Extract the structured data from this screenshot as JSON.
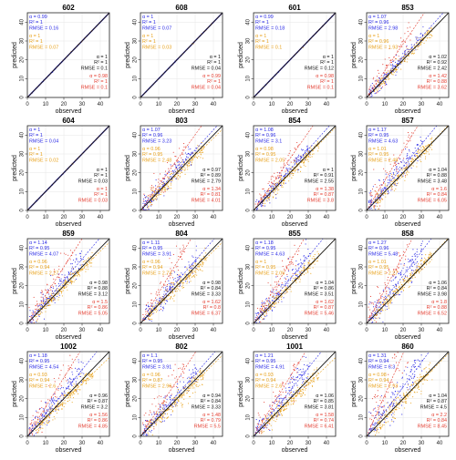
{
  "colors": {
    "blue": "#2a2ae6",
    "orange": "#e8a21c",
    "red": "#e33b2e",
    "black": "#111111",
    "frame": "#222222"
  },
  "chart_data": {
    "type": "scatter",
    "layout": "4x4 facets",
    "xlabel": "observed",
    "ylabel": "predicted",
    "xlim": [
      0,
      45
    ],
    "ylim": [
      0,
      45
    ],
    "ticks": [
      "0",
      "10",
      "20",
      "30",
      "40"
    ],
    "tick_values": [
      0,
      10,
      20,
      30,
      40
    ],
    "legend_position": "per-panel annotations",
    "labels": {
      "alpha": "α = ",
      "r2": "R² = ",
      "rmse": "RMSE = "
    },
    "series_colors": [
      "blue",
      "orange",
      "black",
      "red"
    ],
    "panels": [
      {
        "title": "602",
        "regime": "identity",
        "stats": [
          {
            "alpha": "0.99",
            "r2": "1",
            "rmse": "0.16"
          },
          {
            "alpha": "1",
            "r2": "1",
            "rmse": "0.07"
          },
          {
            "alpha": "1",
            "r2": "1",
            "rmse": "0.1"
          },
          {
            "alpha": "0.98",
            "r2": "1",
            "rmse": "0.1"
          }
        ]
      },
      {
        "title": "608",
        "regime": "identity",
        "stats": [
          {
            "alpha": "1",
            "r2": "1",
            "rmse": "0.07"
          },
          {
            "alpha": "1",
            "r2": "1",
            "rmse": "0.03"
          },
          {
            "alpha": "1",
            "r2": "1",
            "rmse": "0.04"
          },
          {
            "alpha": "0.99",
            "r2": "1",
            "rmse": "0.04"
          }
        ]
      },
      {
        "title": "601",
        "regime": "identity",
        "stats": [
          {
            "alpha": "0.99",
            "r2": "1",
            "rmse": "0.18"
          },
          {
            "alpha": "1",
            "r2": "1",
            "rmse": "0.1"
          },
          {
            "alpha": "1",
            "r2": "1",
            "rmse": "0.12"
          },
          {
            "alpha": "0.98",
            "r2": "1",
            "rmse": "0.1"
          }
        ]
      },
      {
        "title": "853",
        "regime": "scatter",
        "stats": [
          {
            "alpha": "1.07",
            "r2": "0.96",
            "rmse": "2.98"
          },
          {
            "alpha": "1",
            "r2": "0.96",
            "rmse": "1.93"
          },
          {
            "alpha": "1.02",
            "r2": "0.92",
            "rmse": "2.42"
          },
          {
            "alpha": "1.42",
            "r2": "0.88",
            "rmse": "3.62"
          }
        ]
      },
      {
        "title": "604",
        "regime": "identity",
        "stats": [
          {
            "alpha": "1",
            "r2": "1",
            "rmse": "0.04"
          },
          {
            "alpha": "1",
            "r2": "1",
            "rmse": "0.02"
          },
          {
            "alpha": "1",
            "r2": "1",
            "rmse": "0.03"
          },
          {
            "alpha": "1",
            "r2": "1",
            "rmse": "0.03"
          }
        ]
      },
      {
        "title": "803",
        "regime": "scatter",
        "stats": [
          {
            "alpha": "1.07",
            "r2": "0.96",
            "rmse": "3.23"
          },
          {
            "alpha": "0.96",
            "r2": "0.95",
            "rmse": "2.48"
          },
          {
            "alpha": "0.97",
            "r2": "0.89",
            "rmse": "2.79"
          },
          {
            "alpha": "1.34",
            "r2": "0.81",
            "rmse": "4.01"
          }
        ]
      },
      {
        "title": "854",
        "regime": "scatter",
        "stats": [
          {
            "alpha": "1.08",
            "r2": "0.96",
            "rmse": "3.1"
          },
          {
            "alpha": "0.98",
            "r2": "0.95",
            "rmse": "2.05"
          },
          {
            "alpha": "1",
            "r2": "0.91",
            "rmse": "2.55"
          },
          {
            "alpha": "1.38",
            "r2": "0.87",
            "rmse": "3.8"
          }
        ]
      },
      {
        "title": "857",
        "regime": "scatter",
        "stats": [
          {
            "alpha": "1.17",
            "r2": "0.95",
            "rmse": "4.63"
          },
          {
            "alpha": "1.01",
            "r2": "0.95",
            "rmse": "2.48"
          },
          {
            "alpha": "1.04",
            "r2": "0.88",
            "rmse": "3.48"
          },
          {
            "alpha": "1.6",
            "r2": "0.84",
            "rmse": "6.05"
          }
        ]
      },
      {
        "title": "859",
        "regime": "scatter",
        "stats": [
          {
            "alpha": "1.14",
            "r2": "0.95",
            "rmse": "4.07"
          },
          {
            "alpha": "0.96",
            "r2": "0.94",
            "rmse": "2.27"
          },
          {
            "alpha": "0.98",
            "r2": "0.88",
            "rmse": "3.12"
          },
          {
            "alpha": "1.5",
            "r2": "0.86",
            "rmse": "5.05"
          }
        ]
      },
      {
        "title": "804",
        "regime": "scatter",
        "stats": [
          {
            "alpha": "1.11",
            "r2": "0.95",
            "rmse": "3.91"
          },
          {
            "alpha": "0.96",
            "r2": "0.94",
            "rmse": "2.73"
          },
          {
            "alpha": "0.98",
            "r2": "0.84",
            "rmse": "3.33"
          },
          {
            "alpha": "1.62",
            "r2": "0.8",
            "rmse": "6.37"
          }
        ]
      },
      {
        "title": "855",
        "regime": "scatter",
        "stats": [
          {
            "alpha": "1.18",
            "r2": "0.95",
            "rmse": "4.63"
          },
          {
            "alpha": "1",
            "r2": "0.95",
            "rmse": "2.05"
          },
          {
            "alpha": "1.04",
            "r2": "0.86",
            "rmse": "3.51"
          },
          {
            "alpha": "1.62",
            "r2": "0.87",
            "rmse": "5.46"
          }
        ]
      },
      {
        "title": "858",
        "regime": "scatter",
        "stats": [
          {
            "alpha": "1.27",
            "r2": "0.96",
            "rmse": "5.48"
          },
          {
            "alpha": "1.01",
            "r2": "0.95",
            "rmse": "2.27"
          },
          {
            "alpha": "1.06",
            "r2": "0.84",
            "rmse": "3.98"
          },
          {
            "alpha": "1.8",
            "r2": "0.88",
            "rmse": "6.52"
          }
        ]
      },
      {
        "title": "1002",
        "regime": "scatter",
        "stats": [
          {
            "alpha": "1.18",
            "r2": "0.95",
            "rmse": "4.54"
          },
          {
            "alpha": "0.93",
            "r2": "0.94",
            "rmse": "2.6"
          },
          {
            "alpha": "0.96",
            "r2": "0.87",
            "rmse": "3.2"
          },
          {
            "alpha": "1.56",
            "r2": "0.86",
            "rmse": "4.85"
          }
        ]
      },
      {
        "title": "802",
        "regime": "scatter",
        "stats": [
          {
            "alpha": "1.1",
            "r2": "0.95",
            "rmse": "3.91"
          },
          {
            "alpha": "0.96",
            "r2": "0.87",
            "rmse": "2.96"
          },
          {
            "alpha": "0.94",
            "r2": "0.84",
            "rmse": "3.33"
          },
          {
            "alpha": "1.48",
            "r2": "0.79",
            "rmse": "5.5"
          }
        ]
      },
      {
        "title": "1001",
        "regime": "scatter",
        "stats": [
          {
            "alpha": "1.21",
            "r2": "0.95",
            "rmse": "4.91"
          },
          {
            "alpha": "0.93",
            "r2": "0.94",
            "rmse": "2.6"
          },
          {
            "alpha": "1.06",
            "r2": "0.85",
            "rmse": "3.81"
          },
          {
            "alpha": "1.58",
            "r2": "0.74",
            "rmse": "6.41"
          }
        ]
      },
      {
        "title": "860",
        "regime": "scatter",
        "stats": [
          {
            "alpha": "1.31",
            "r2": "0.94",
            "rmse": "6.3"
          },
          {
            "alpha": "0.98",
            "r2": "0.94",
            "rmse": "2.93"
          },
          {
            "alpha": "1.04",
            "r2": "0.87",
            "rmse": "4.5"
          },
          {
            "alpha": "2.2",
            "r2": "0.84",
            "rmse": "8.45"
          }
        ]
      }
    ]
  }
}
